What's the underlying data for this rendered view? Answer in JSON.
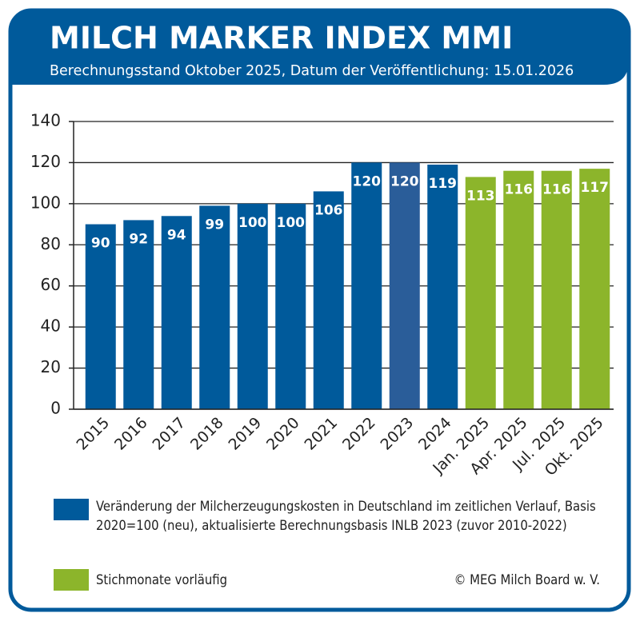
{
  "chart_data": {
    "type": "bar",
    "title": "MILCH MARKER INDEX MMI",
    "subtitle": "Berechnungsstand Oktober 2025, Datum der Veröffentlichung: 15.01.2026",
    "categories": [
      "2015",
      "2016",
      "2017",
      "2018",
      "2019",
      "2020",
      "2021",
      "2022",
      "2023",
      "2024",
      "Jan. 2025",
      "Apr. 2025",
      "Jul. 2025",
      "Okt. 2025"
    ],
    "values": [
      90,
      92,
      94,
      99,
      100,
      100,
      106,
      120,
      120,
      119,
      113,
      116,
      116,
      117
    ],
    "colors": [
      "#005a9b",
      "#005a9b",
      "#005a9b",
      "#005a9b",
      "#005a9b",
      "#005a9b",
      "#005a9b",
      "#005a9b",
      "#2a5d99",
      "#005a9b",
      "#8cb52b",
      "#8cb52b",
      "#8cb52b",
      "#8cb52b"
    ],
    "ylim": [
      0,
      140
    ],
    "yticks": [
      0,
      20,
      40,
      60,
      80,
      100,
      120,
      140
    ],
    "grid": true,
    "legend": [
      {
        "label": "Veränderung der Milcherzeugungskosten in Deutschland im zeitlichen Verlauf, Basis 2020=100 (neu), aktualisierte Berechnungsbasis INLB 2023 (zuvor 2010-2022)",
        "color": "#005a9b"
      },
      {
        "label": "Stichmonate vorläufig",
        "color": "#8cb52b"
      }
    ],
    "source": "© MEG Milch Board w. V."
  }
}
